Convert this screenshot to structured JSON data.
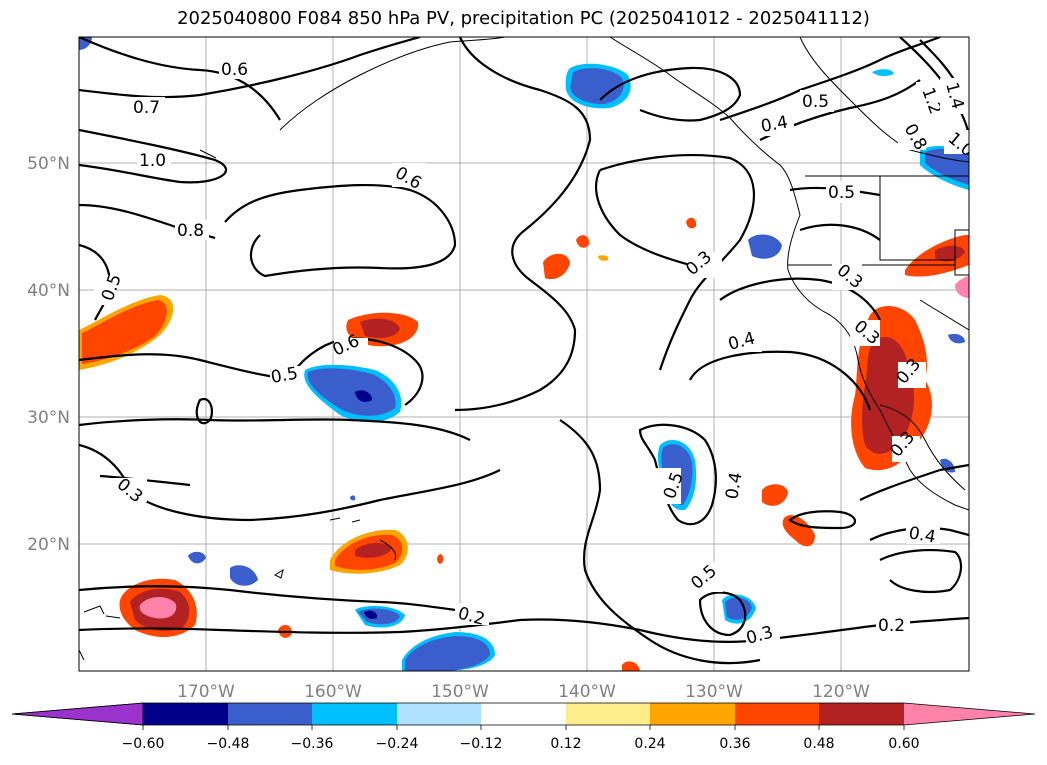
{
  "title": "2025040800 F084 850 hPa PV, precipitation PC (2025041012 - 2025041112)",
  "map": {
    "lon_labels": [
      "170°W",
      "160°W",
      "150°W",
      "140°W",
      "130°W",
      "120°W"
    ],
    "lat_labels": [
      "50°N",
      "40°N",
      "30°N",
      "20°N"
    ],
    "contour_labels": [
      "0.6",
      "0.7",
      "1.0",
      "0.8",
      "0.5",
      "0.6",
      "0.5",
      "0.6",
      "0.3",
      "0.5",
      "0.4",
      "0.3",
      "0.4",
      "0.4",
      "0.5",
      "0.3",
      "0.2",
      "0.2",
      "0.4",
      "0.5",
      "0.8",
      "1.2",
      "1.4",
      "1.0",
      "0.5",
      "0.3",
      "0.3",
      "0.3",
      "0.3"
    ]
  },
  "colorbar": {
    "ticks": [
      "−0.60",
      "−0.48",
      "−0.36",
      "−0.24",
      "−0.12",
      "0.12",
      "0.24",
      "0.36",
      "0.48",
      "0.60"
    ],
    "colors": [
      "#9a32cd",
      "#00008b",
      "#3a5fcd",
      "#00bfff",
      "#b0e2ff",
      "#ffffff",
      "#ffec8b",
      "#ffa500",
      "#ff4500",
      "#b22222",
      "#ff82ab"
    ]
  }
}
